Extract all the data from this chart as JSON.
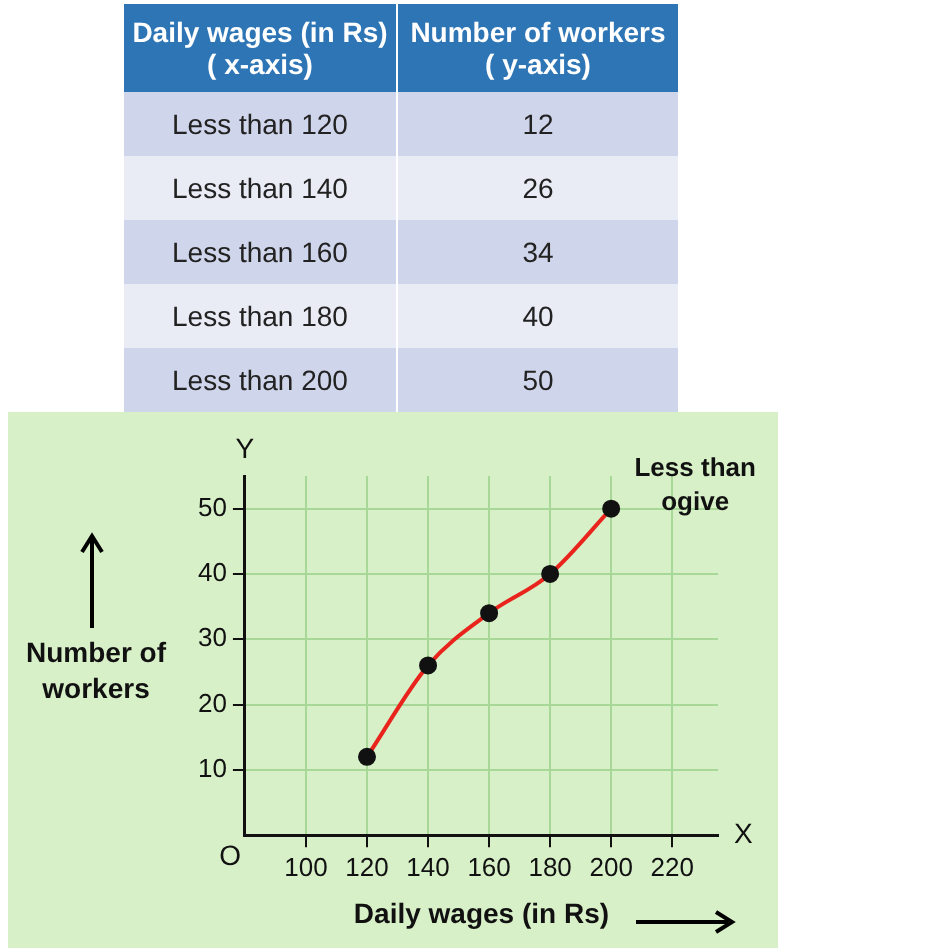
{
  "chart_data": {
    "type": "line",
    "xlabel": "Daily wages (in Rs)",
    "ylabel": "Number of workers",
    "x": [
      120,
      140,
      160,
      180,
      200
    ],
    "series": [
      {
        "color": "#e8241c",
        "values": [
          12,
          26,
          34,
          40,
          50
        ]
      }
    ],
    "xlim": [
      80,
      235
    ],
    "xticks": [
      100,
      120,
      140,
      160,
      180,
      200,
      220
    ],
    "ylim": [
      0,
      55
    ],
    "yticks": [
      10,
      20,
      30,
      40,
      50
    ],
    "grid": true,
    "marker": "circle",
    "legend": false,
    "annotations": [
      {
        "text": "Less than ogive",
        "x": 200,
        "y": 50
      },
      "X",
      "Y",
      "O",
      "Daily wages (in Rs) ( x-axis)",
      "Number of workers ( y-axis)",
      "Less than 120",
      "Less than 140",
      "Less than 160",
      "Less than 180",
      "Less than 200",
      "12",
      "26",
      "34",
      "40",
      "50"
    ]
  }
}
